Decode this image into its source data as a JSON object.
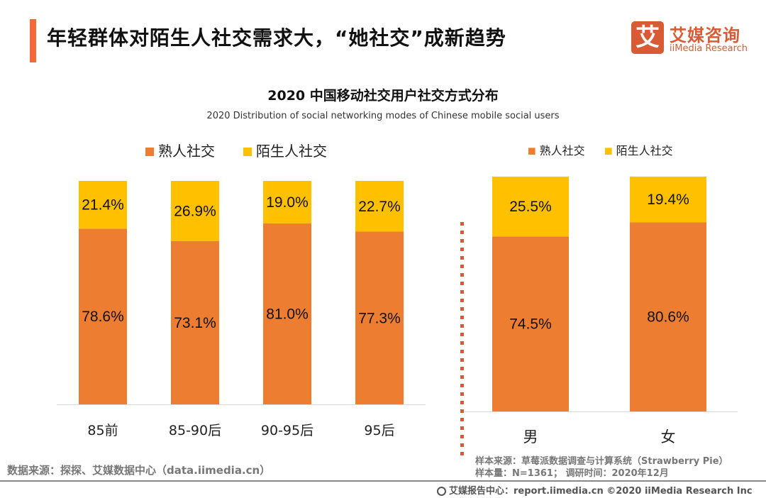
{
  "header": {
    "title": "年轻群体对陌生人社交需求大，“她社交”成新趋势",
    "logo_mark": "艾",
    "logo_cn": "艾媒咨询",
    "logo_en": "iiMedia Research"
  },
  "colors": {
    "acquaintance": "#ed7d31",
    "stranger": "#ffc000",
    "accent": "#f26a3a",
    "divider": "#d95b36"
  },
  "chart_data": [
    {
      "type": "bar",
      "stacked": true,
      "percent": true,
      "title": "2020 中国移动社交用户社交方式分布",
      "subtitle": "2020 Distribution of social networking modes of Chinese mobile social users",
      "categories": [
        "85前",
        "85-90后",
        "90-95后",
        "95后"
      ],
      "series": [
        {
          "name": "熟人社交",
          "values": [
            78.6,
            73.1,
            81.0,
            77.3
          ],
          "labels": [
            "78.6%",
            "73.1%",
            "81.0%",
            "77.3%"
          ]
        },
        {
          "name": "陌生人社交",
          "values": [
            21.4,
            26.9,
            19.0,
            22.7
          ],
          "labels": [
            "21.4%",
            "26.9%",
            "19.0%",
            "22.7%"
          ]
        }
      ],
      "ylim": [
        0,
        100
      ],
      "legend": "top-left",
      "grid": false
    },
    {
      "type": "bar",
      "stacked": true,
      "percent": true,
      "categories": [
        "男",
        "女"
      ],
      "series": [
        {
          "name": "熟人社交",
          "values": [
            74.5,
            80.6
          ],
          "labels": [
            "74.5%",
            "80.6%"
          ]
        },
        {
          "name": "陌生人社交",
          "values": [
            25.5,
            19.4
          ],
          "labels": [
            "25.5%",
            "19.4%"
          ]
        }
      ],
      "ylim": [
        0,
        100
      ],
      "legend": "top-center",
      "grid": false
    }
  ],
  "footer": {
    "source": "数据来源：探探、艾媒数据中心（data.iimedia.cn）",
    "sample_source": "样本来源：草莓派数据调查与计算系统（Strawberry Pie）",
    "sample_size": "样本量：N=1361；  调研时间：2020年12月",
    "copyright": "艾媒报告中心：report.iimedia.cn   ©2020  iiMedia Research  Inc"
  }
}
